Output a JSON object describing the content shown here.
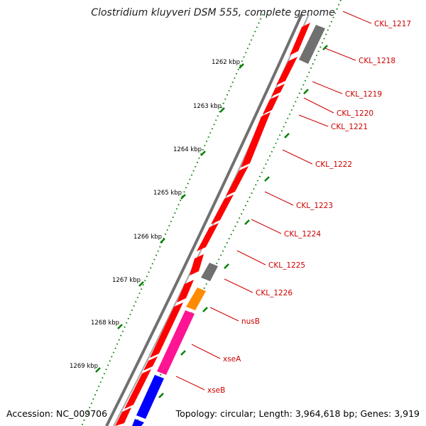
{
  "title": "Clostridium kluyveri DSM 555, complete genome",
  "footer": {
    "accession_label": "Accession:",
    "accession": "NC_009706",
    "topology_label": "Topology:",
    "topology": "circular",
    "length_label": "Length:",
    "length": "3,964,618 bp",
    "genes_label": "Genes:",
    "genes": "3,919"
  },
  "scale": {
    "unit": "kbp",
    "ticks": [
      1262,
      1263,
      1264,
      1265,
      1266,
      1267,
      1268,
      1269
    ]
  },
  "colors": {
    "cds": "#ff0000",
    "other": "#707070",
    "nusB": "#ff8c00",
    "xseA": "#ff1493",
    "xseB": "#0000ff",
    "backbone": "#707070",
    "tick": "#008000",
    "label": "#cc0000"
  },
  "genes": [
    {
      "label": "CKL_1217",
      "color": "#ff0000"
    },
    {
      "label": "CKL_1218",
      "color": "#707070"
    },
    {
      "label": "CKL_1219",
      "color": "#ff0000"
    },
    {
      "label": "CKL_1220",
      "color": "#ff0000"
    },
    {
      "label": "CKL_1221",
      "color": "#ff0000"
    },
    {
      "label": "CKL_1222",
      "color": "#ff0000"
    },
    {
      "label": "CKL_1223",
      "color": "#ff0000"
    },
    {
      "label": "CKL_1224",
      "color": "#ff0000"
    },
    {
      "label": "CKL_1225",
      "color": "#ff0000"
    },
    {
      "label": "CKL_1226",
      "color": "#707070"
    },
    {
      "label": "nusB",
      "color": "#ff8c00"
    },
    {
      "label": "xseA",
      "color": "#ff1493"
    },
    {
      "label": "xseB",
      "color": "#0000ff"
    }
  ]
}
